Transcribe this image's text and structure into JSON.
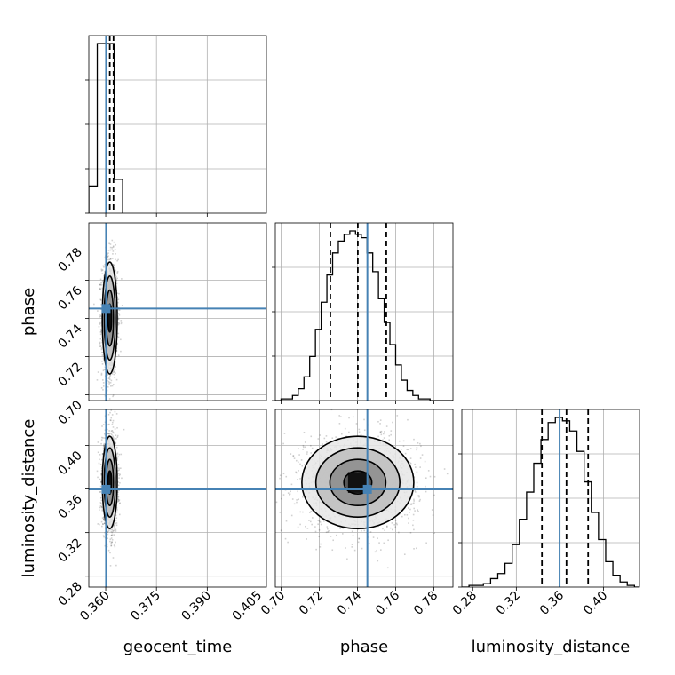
{
  "chart_data": {
    "type": "corner",
    "parameters": [
      "geocent_time",
      "phase",
      "luminosity_distance"
    ],
    "axis_labels": {
      "geocent_time": "geocent_time",
      "phase": "phase",
      "luminosity_distance": "luminosity_distance"
    },
    "ranges": {
      "geocent_time": [
        0.355,
        0.4075
      ],
      "phase": [
        0.697,
        0.79
      ],
      "luminosity_distance": [
        0.27,
        0.433
      ]
    },
    "ticks": {
      "geocent_time": [
        0.36,
        0.375,
        0.39,
        0.405
      ],
      "phase": [
        0.7,
        0.72,
        0.74,
        0.76,
        0.78
      ],
      "luminosity_distance": [
        0.28,
        0.32,
        0.36,
        0.4
      ]
    },
    "tick_labels": {
      "geocent_time": [
        "0.360",
        "0.375",
        "0.390",
        "0.405"
      ],
      "phase": [
        "0.70",
        "0.72",
        "0.74",
        "0.76",
        "0.78"
      ],
      "luminosity_distance": [
        "0.28",
        "0.32",
        "0.36",
        "0.40"
      ]
    },
    "truths": {
      "geocent_time": 0.3601,
      "phase": 0.7452,
      "luminosity_distance": 0.3597
    },
    "quantiles": {
      "geocent_time": [
        0.3601,
        0.3612,
        0.3623
      ],
      "phase": [
        0.7258,
        0.7402,
        0.7551
      ],
      "luminosity_distance": [
        0.3435,
        0.366,
        0.3859
      ]
    },
    "histograms": {
      "geocent_time": {
        "edges": [
          0.355,
          0.3575,
          0.36,
          0.3625,
          0.365
        ],
        "counts": [
          0.16,
          1.0,
          1.0,
          0.2
        ]
      },
      "phase": {
        "edges": [
          0.697,
          0.7,
          0.703,
          0.706,
          0.709,
          0.712,
          0.715,
          0.718,
          0.721,
          0.724,
          0.727,
          0.73,
          0.733,
          0.736,
          0.739,
          0.742,
          0.745,
          0.748,
          0.751,
          0.754,
          0.757,
          0.76,
          0.763,
          0.766,
          0.769,
          0.772,
          0.775,
          0.778,
          0.781,
          0.784,
          0.787,
          0.79
        ],
        "counts": [
          0.0,
          0.01,
          0.01,
          0.03,
          0.07,
          0.14,
          0.26,
          0.42,
          0.58,
          0.74,
          0.87,
          0.94,
          0.98,
          1.0,
          0.98,
          0.96,
          0.87,
          0.76,
          0.6,
          0.46,
          0.33,
          0.21,
          0.12,
          0.06,
          0.03,
          0.01,
          0.01,
          0.0,
          0.0,
          0.0,
          0.0
        ]
      },
      "luminosity_distance": {
        "edges": [
          0.27,
          0.2766,
          0.2832,
          0.2898,
          0.2964,
          0.303,
          0.3096,
          0.3162,
          0.3228,
          0.3294,
          0.336,
          0.3426,
          0.3492,
          0.3558,
          0.3624,
          0.369,
          0.3756,
          0.3822,
          0.3888,
          0.3954,
          0.402,
          0.4086,
          0.4152,
          0.4218,
          0.4284,
          0.433
        ],
        "counts": [
          0.0,
          0.01,
          0.01,
          0.02,
          0.05,
          0.08,
          0.14,
          0.25,
          0.4,
          0.56,
          0.73,
          0.87,
          0.97,
          1.0,
          0.98,
          0.92,
          0.8,
          0.62,
          0.44,
          0.28,
          0.15,
          0.07,
          0.03,
          0.01,
          0.0
        ]
      }
    },
    "contour_levels_sigma": [
      0.5,
      1.0,
      1.5,
      2.0
    ],
    "grid": true
  }
}
